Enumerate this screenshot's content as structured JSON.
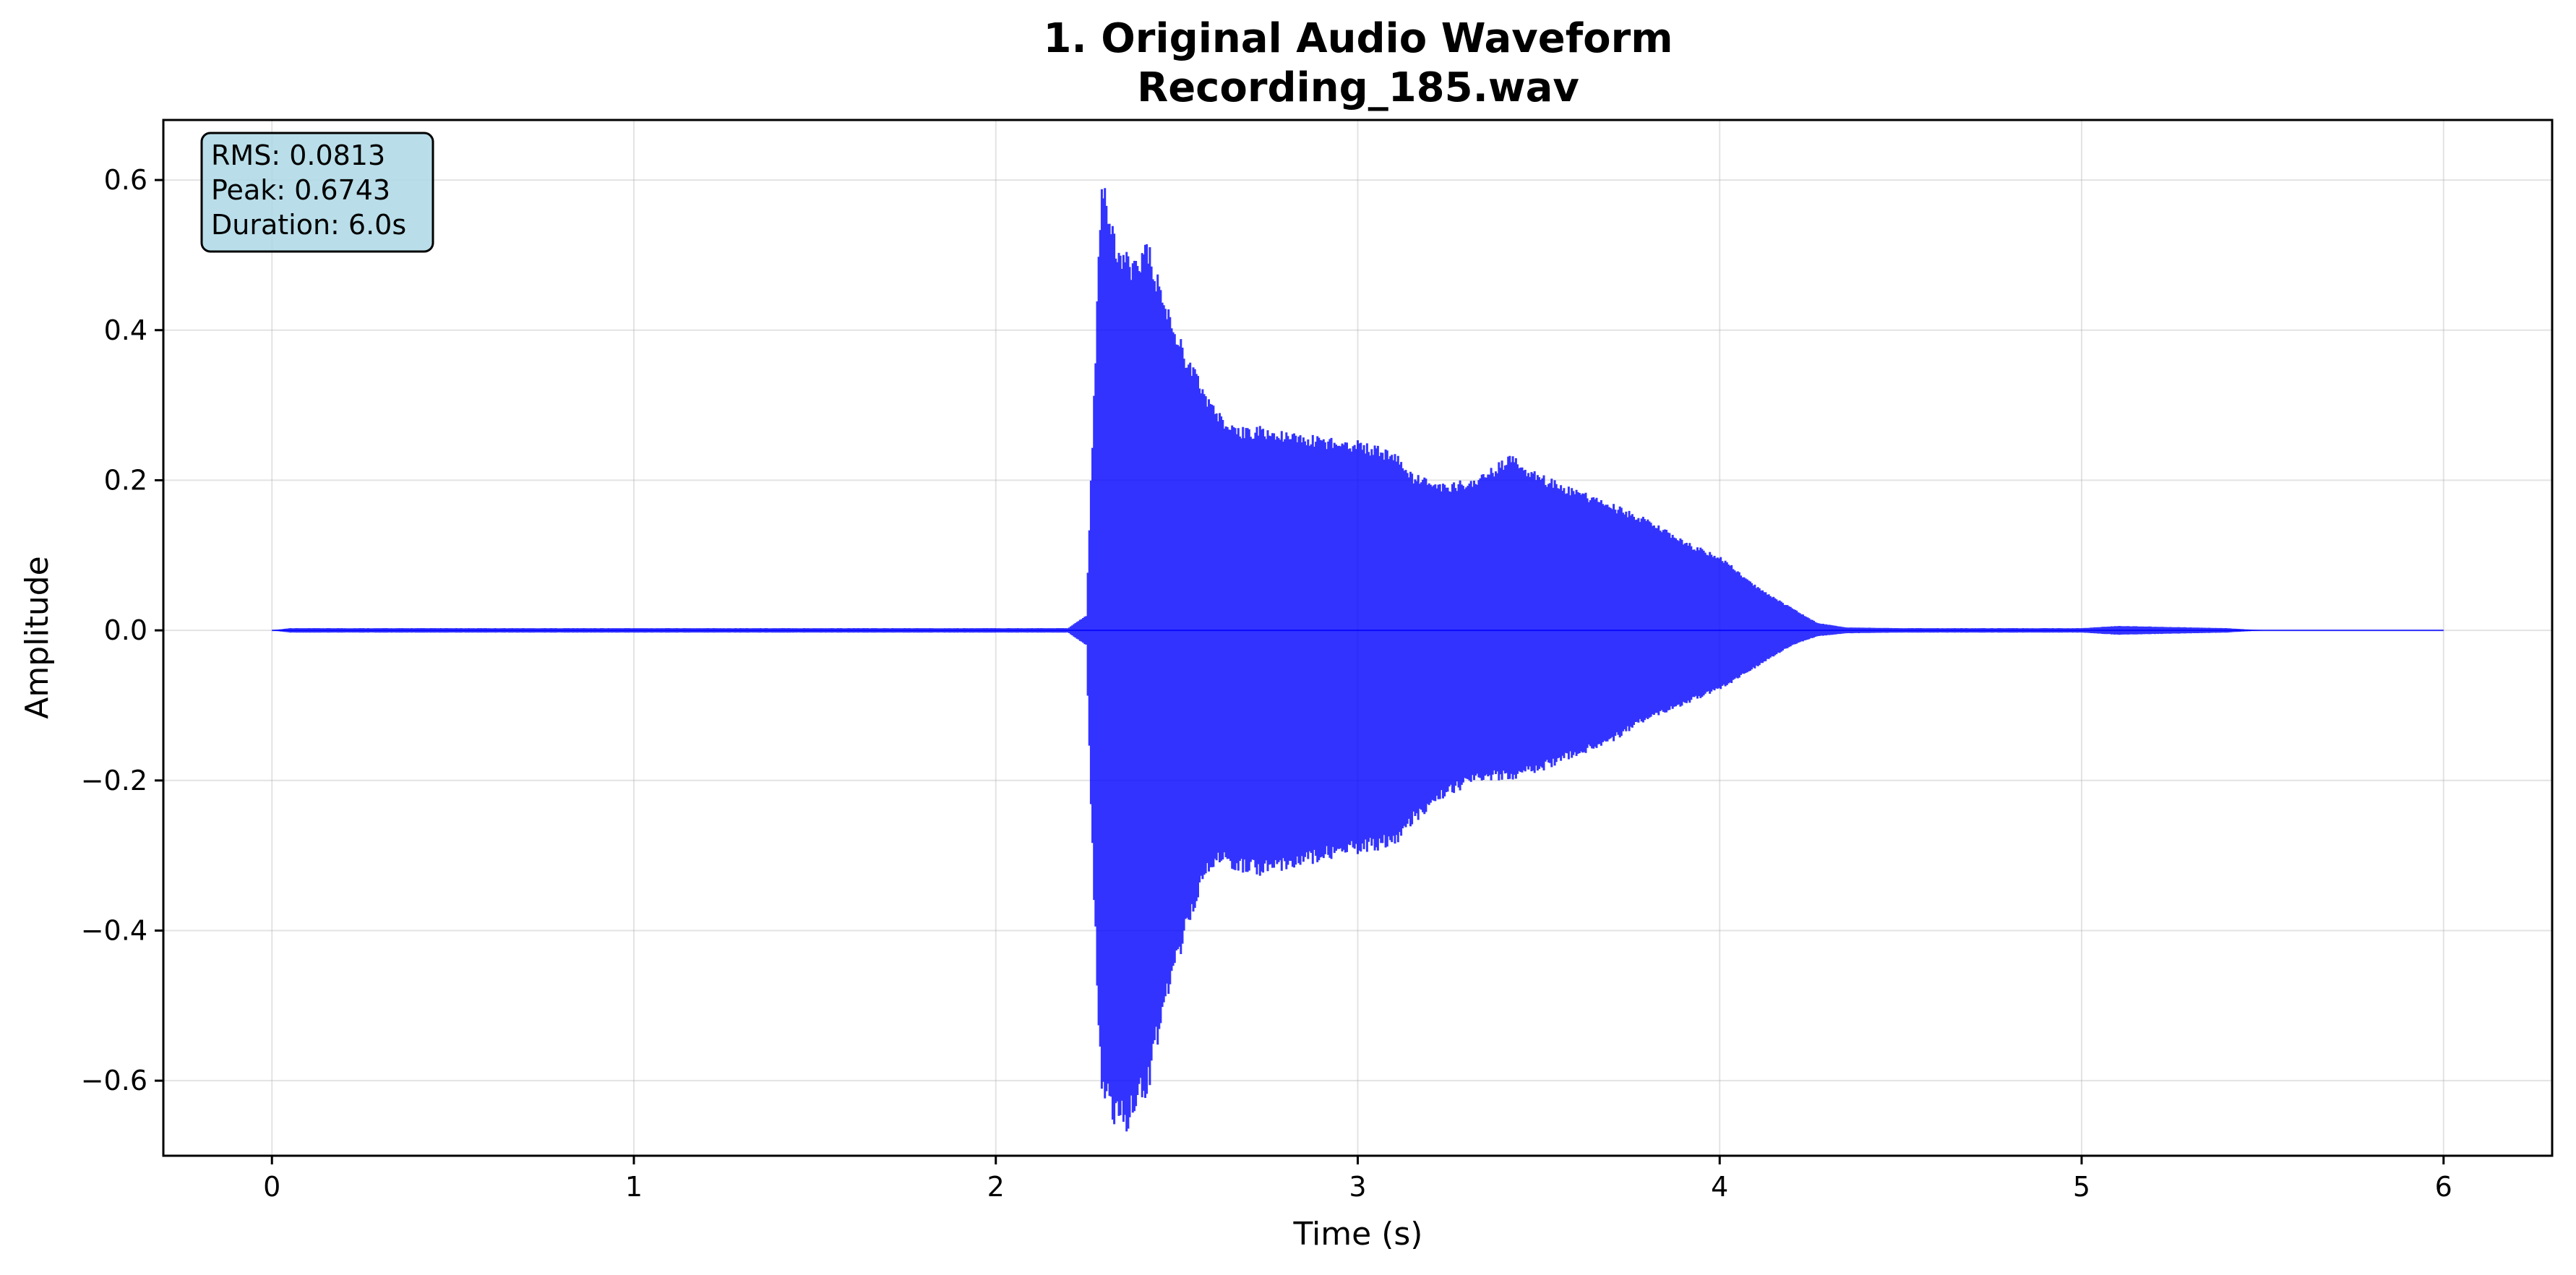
{
  "chart_data": {
    "type": "line",
    "title_line1": "1. Original Audio Waveform",
    "title_line2": "Recording_185.wav",
    "xlabel": "Time (s)",
    "ylabel": "Amplitude",
    "xlim": [
      -0.3,
      6.3
    ],
    "ylim": [
      -0.7,
      0.68
    ],
    "x_ticks": [
      0,
      1,
      2,
      3,
      4,
      5,
      6
    ],
    "x_tick_labels": [
      "0",
      "1",
      "2",
      "3",
      "4",
      "5",
      "6"
    ],
    "y_ticks": [
      -0.6,
      -0.4,
      -0.2,
      0.0,
      0.2,
      0.4,
      0.6
    ],
    "y_tick_labels": [
      "−0.6",
      "−0.4",
      "−0.2",
      "0.0",
      "0.2",
      "0.4",
      "0.6"
    ],
    "grid": true,
    "series": [
      {
        "color": "#0000ff",
        "envelope": {
          "t": [
            0,
            0.05,
            0.5,
            1.0,
            1.5,
            2.0,
            2.2,
            2.25,
            2.27,
            2.29,
            2.3,
            2.33,
            2.37,
            2.42,
            2.47,
            2.52,
            2.57,
            2.62,
            2.66,
            2.72,
            2.8,
            2.9,
            3.0,
            3.1,
            3.15,
            3.25,
            3.35,
            3.42,
            3.5,
            3.6,
            3.7,
            3.8,
            3.9,
            4.0,
            4.1,
            4.2,
            4.27,
            4.35,
            4.5,
            5.0,
            5.1,
            5.4,
            5.5,
            6.0
          ],
          "upper": [
            0,
            0.003,
            0.003,
            0.003,
            0.003,
            0.003,
            0.003,
            0.02,
            0.3,
            0.58,
            0.61,
            0.52,
            0.5,
            0.52,
            0.44,
            0.38,
            0.33,
            0.29,
            0.27,
            0.275,
            0.265,
            0.26,
            0.255,
            0.24,
            0.21,
            0.195,
            0.21,
            0.235,
            0.21,
            0.19,
            0.17,
            0.15,
            0.12,
            0.1,
            0.06,
            0.03,
            0.01,
            0.004,
            0.003,
            0.003,
            0.006,
            0.003,
            0,
            0
          ],
          "lower": [
            0,
            -0.003,
            -0.003,
            -0.003,
            -0.003,
            -0.003,
            -0.003,
            -0.02,
            -0.35,
            -0.6,
            -0.64,
            -0.66,
            -0.67,
            -0.62,
            -0.5,
            -0.42,
            -0.34,
            -0.31,
            -0.32,
            -0.33,
            -0.32,
            -0.31,
            -0.3,
            -0.29,
            -0.26,
            -0.22,
            -0.2,
            -0.2,
            -0.19,
            -0.17,
            -0.15,
            -0.12,
            -0.1,
            -0.08,
            -0.05,
            -0.02,
            -0.008,
            -0.004,
            -0.003,
            -0.003,
            -0.006,
            -0.003,
            0,
            0
          ]
        }
      }
    ],
    "stats_box": {
      "rms": "RMS: 0.0813",
      "peak": "Peak: 0.6743",
      "duration": "Duration: 6.0s",
      "background": "#add8e6"
    }
  }
}
